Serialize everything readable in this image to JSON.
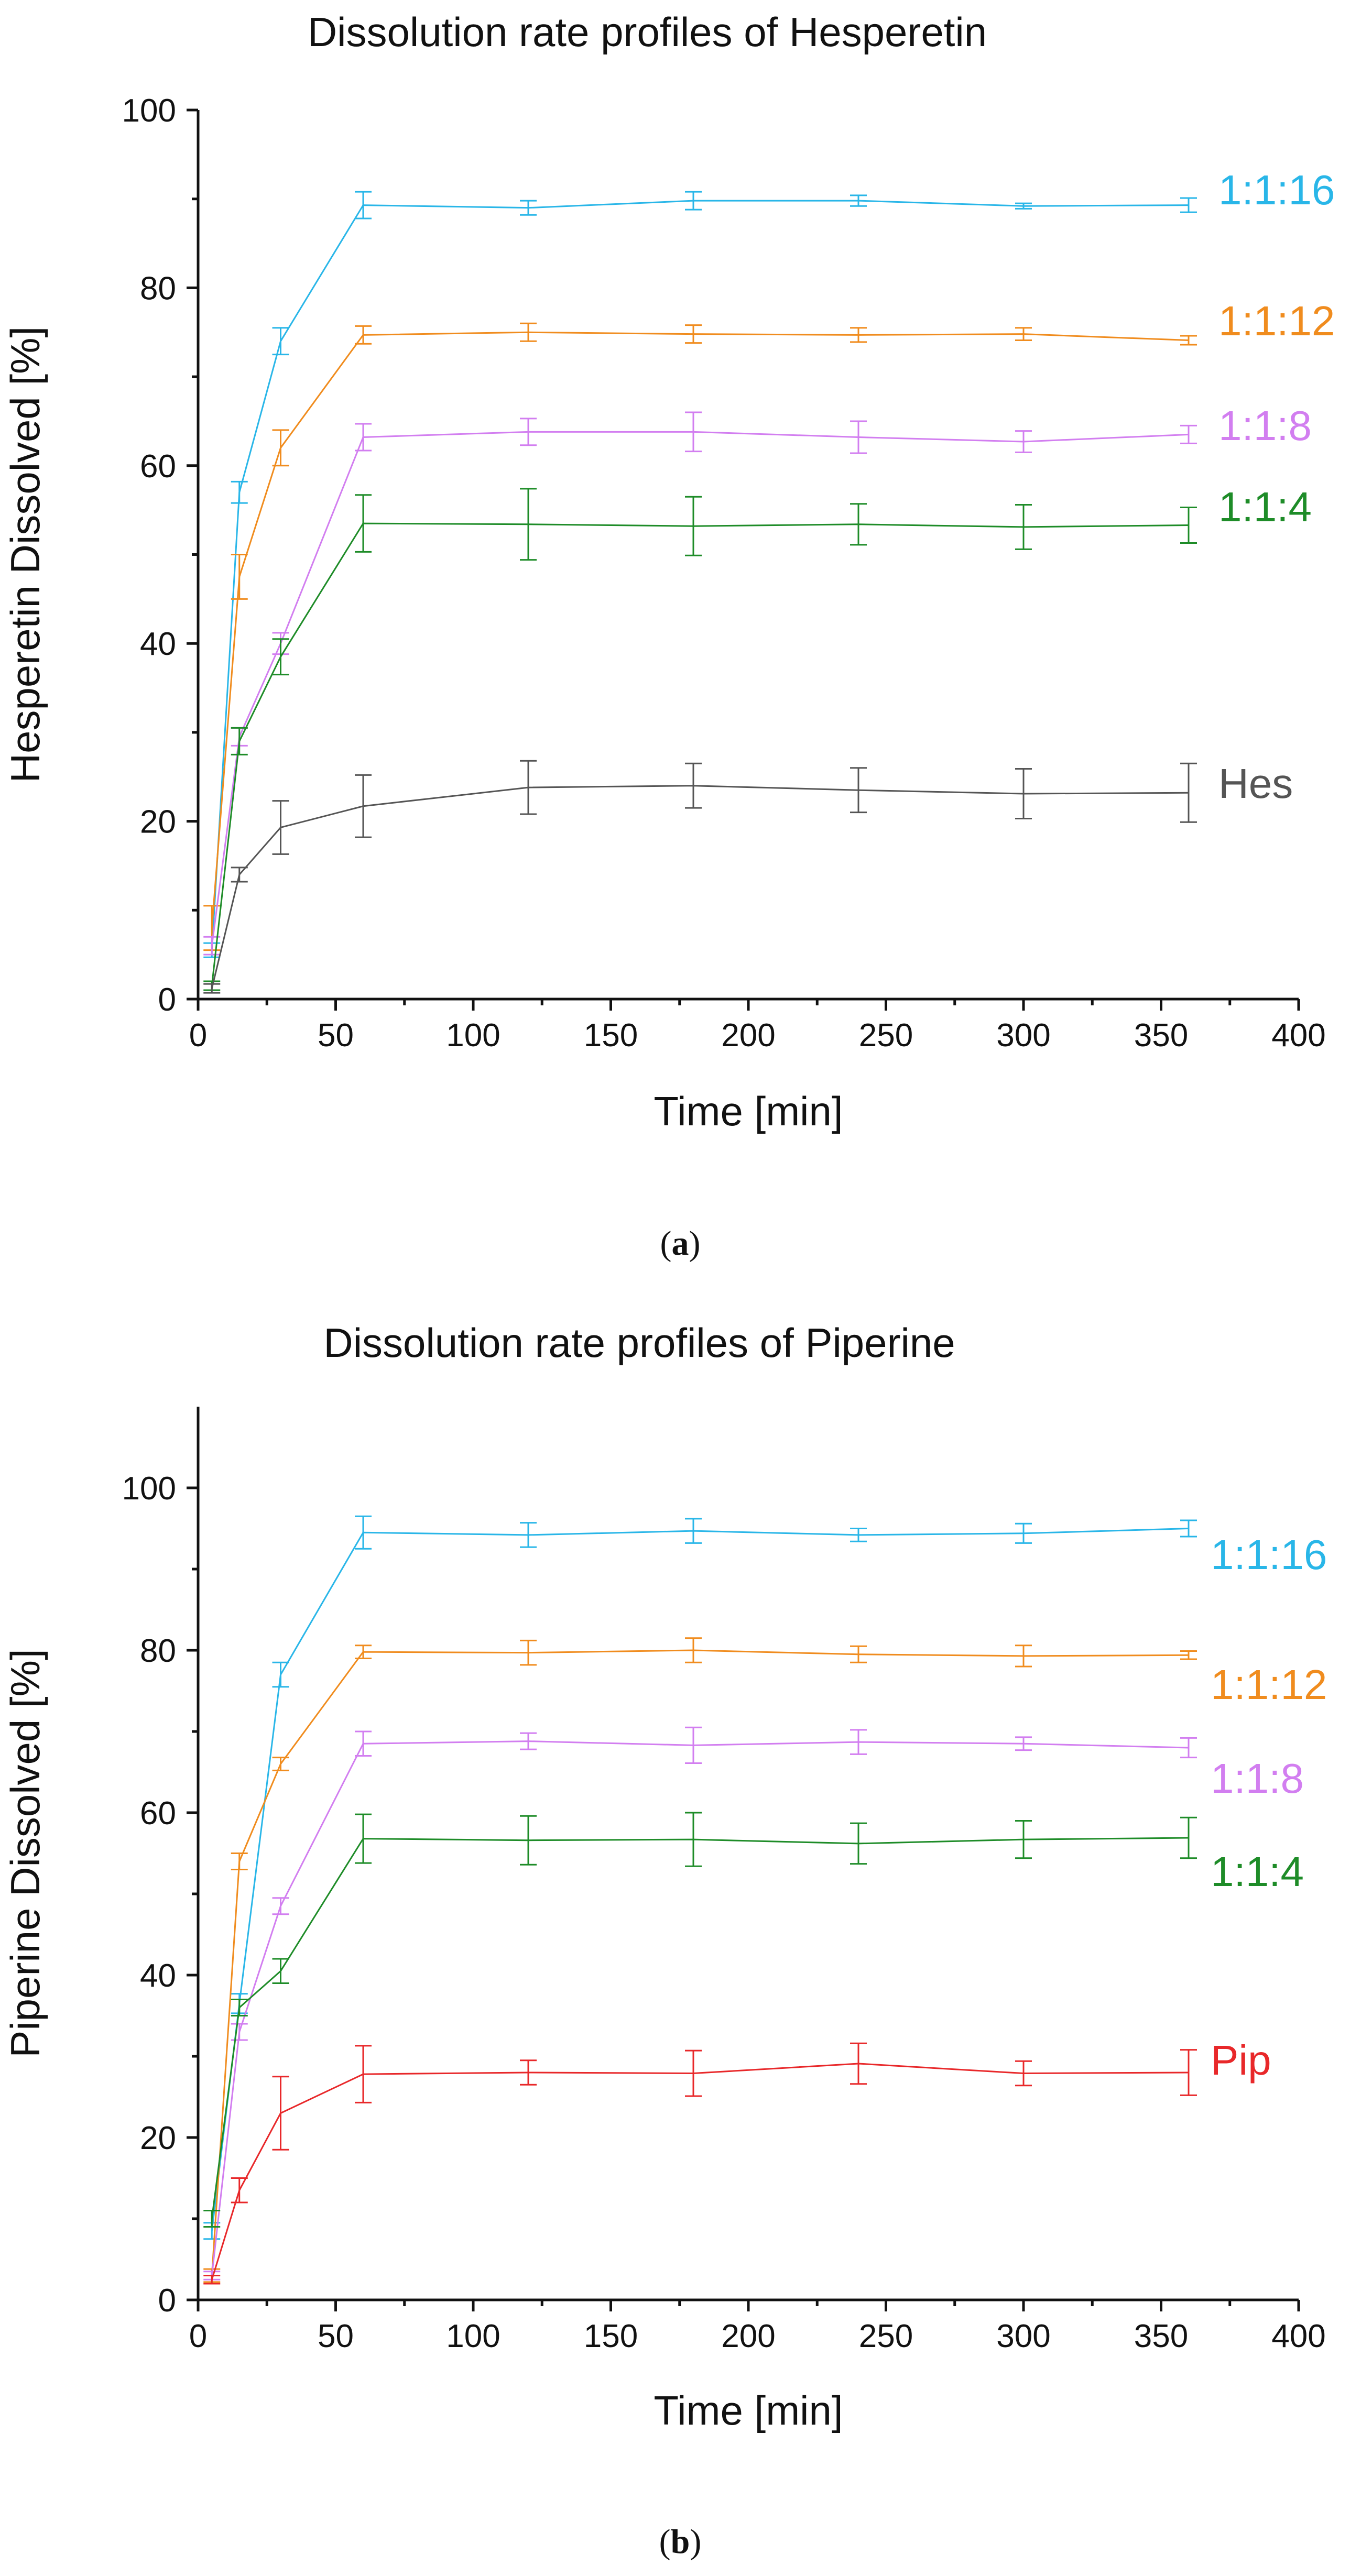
{
  "figure": {
    "panels": [
      {
        "caption_letter": "a"
      },
      {
        "caption_letter": "b"
      }
    ]
  },
  "chart_data": [
    {
      "type": "line",
      "title": "Dissolution rate profiles of Hesperetin",
      "xlabel": "Time [min]",
      "ylabel": "Hesperetin Dissolved [%]",
      "xlim": [
        0,
        400
      ],
      "ylim": [
        0,
        100
      ],
      "xticks": [
        0,
        50,
        100,
        150,
        200,
        250,
        300,
        350,
        400
      ],
      "yticks": [
        0,
        20,
        40,
        60,
        80,
        100
      ],
      "x": [
        5,
        15,
        30,
        60,
        120,
        180,
        240,
        300,
        360
      ],
      "series": [
        {
          "name": "1:1:16",
          "color": "#29b6e8",
          "values": [
            5.5,
            57,
            74,
            89.3,
            89,
            89.8,
            89.8,
            89.2,
            89.3
          ],
          "errors": [
            0.8,
            1.2,
            1.5,
            1.5,
            0.8,
            1.0,
            0.6,
            0.3,
            0.8
          ]
        },
        {
          "name": "1:1:12",
          "color": "#f08c1e",
          "values": [
            8,
            47.5,
            62,
            74.7,
            75,
            74.8,
            74.7,
            74.8,
            74.1
          ],
          "errors": [
            2.5,
            2.5,
            2.0,
            1.0,
            1.0,
            1.0,
            0.8,
            0.7,
            0.5
          ]
        },
        {
          "name": "1:1:8",
          "color": "#d27ef0",
          "values": [
            6,
            29.5,
            40,
            63.2,
            63.8,
            63.8,
            63.2,
            62.7,
            63.5
          ],
          "errors": [
            1.0,
            1.0,
            1.2,
            1.5,
            1.5,
            2.2,
            1.8,
            1.2,
            1.0
          ]
        },
        {
          "name": "1:1:4",
          "color": "#1e8c28",
          "values": [
            1.5,
            29,
            38.5,
            53.5,
            53.4,
            53.2,
            53.4,
            53.1,
            53.3
          ],
          "errors": [
            0.5,
            1.5,
            2.0,
            3.2,
            4.0,
            3.3,
            2.3,
            2.5,
            2.0
          ]
        },
        {
          "name": "Hes",
          "color": "#555555",
          "values": [
            1.2,
            14,
            19.3,
            21.7,
            23.8,
            24,
            23.5,
            23.1,
            23.2
          ],
          "errors": [
            0.5,
            0.8,
            3.0,
            3.5,
            3.0,
            2.5,
            2.5,
            2.8,
            3.3
          ]
        }
      ]
    },
    {
      "type": "line",
      "title": "Dissolution rate profiles of Piperine",
      "xlabel": "Time [min]",
      "ylabel": "Piperine Dissolved [%]",
      "xlim": [
        0,
        400
      ],
      "ylim": [
        0,
        110
      ],
      "xticks": [
        0,
        50,
        100,
        150,
        200,
        250,
        300,
        350,
        400
      ],
      "yticks": [
        0,
        20,
        40,
        60,
        80,
        100
      ],
      "x": [
        5,
        15,
        30,
        60,
        120,
        180,
        240,
        300,
        360
      ],
      "series": [
        {
          "name": "1:1:16",
          "color": "#29b6e8",
          "values": [
            8.5,
            36.5,
            77,
            94.5,
            94.2,
            94.7,
            94.2,
            94.4,
            95
          ],
          "errors": [
            1.0,
            1.2,
            1.5,
            2.0,
            1.5,
            1.5,
            0.8,
            1.2,
            1.0
          ]
        },
        {
          "name": "1:1:12",
          "color": "#f08c1e",
          "values": [
            3,
            54,
            66,
            79.8,
            79.7,
            80,
            79.5,
            79.3,
            79.4
          ],
          "errors": [
            0.8,
            1.0,
            0.8,
            0.8,
            1.5,
            1.5,
            1.0,
            1.3,
            0.5
          ]
        },
        {
          "name": "1:1:8",
          "color": "#d27ef0",
          "values": [
            3,
            33,
            48.5,
            68.5,
            68.8,
            68.3,
            68.7,
            68.5,
            68
          ],
          "errors": [
            0.5,
            1.0,
            1.0,
            1.5,
            1.0,
            2.2,
            1.5,
            0.8,
            1.2
          ]
        },
        {
          "name": "1:1:4",
          "color": "#1e8c28",
          "values": [
            10,
            36,
            40.5,
            56.8,
            56.6,
            56.7,
            56.2,
            56.7,
            56.9
          ],
          "errors": [
            1.0,
            1.0,
            1.5,
            3.0,
            3.0,
            3.3,
            2.5,
            2.3,
            2.5
          ]
        },
        {
          "name": "Pip",
          "color": "#e8282a",
          "values": [
            2.5,
            13.5,
            23,
            27.8,
            28,
            27.9,
            29.1,
            27.9,
            28
          ],
          "errors": [
            0.5,
            1.5,
            4.5,
            3.5,
            1.5,
            2.8,
            2.5,
            1.5,
            2.8
          ]
        }
      ]
    }
  ]
}
